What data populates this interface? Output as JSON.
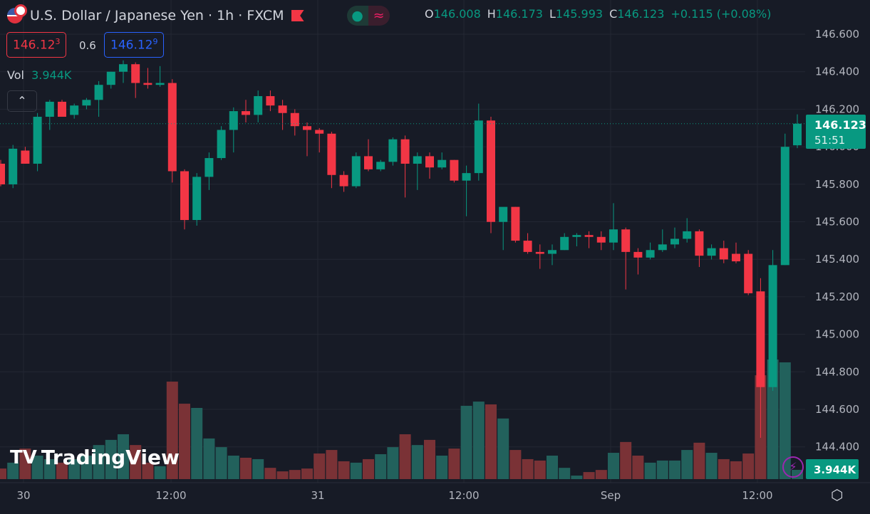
{
  "header": {
    "title": "U.S. Dollar / Japanese Yen · 1h · FXCM",
    "open_label": "O",
    "open": "146.008",
    "high_label": "H",
    "high": "146.173",
    "low_label": "L",
    "low": "145.993",
    "close_label": "C",
    "close": "146.123",
    "change": "+0.115 (+0.08%)"
  },
  "quote": {
    "bid": "146.12",
    "bid_sup": "3",
    "spread": "0.6",
    "ask": "146.12",
    "ask_sup": "9"
  },
  "volume_legend": {
    "label": "Vol",
    "value": "3.944K"
  },
  "price_axis": [
    "146.600",
    "146.400",
    "146.200",
    "146.000",
    "145.800",
    "145.600",
    "145.400",
    "145.200",
    "145.000",
    "144.800",
    "144.600",
    "144.400"
  ],
  "last_price": {
    "price": "146.123",
    "countdown": "51:51"
  },
  "volume_label": "3.944K",
  "time_axis": [
    "30",
    "12:00",
    "31",
    "12:00",
    "Sep",
    "12:00"
  ],
  "logo_text": "TradingView",
  "colors": {
    "up": "#089981",
    "down": "#f23645",
    "bg": "#171b26"
  },
  "chart_data": {
    "type": "candlestick",
    "symbol": "USDJPY",
    "interval": "1h",
    "ohlc": [
      [
        145.91,
        145.93,
        145.79,
        145.8
      ],
      [
        145.8,
        146.01,
        145.78,
        145.99
      ],
      [
        145.98,
        146.0,
        145.91,
        145.91
      ],
      [
        145.91,
        146.18,
        145.87,
        146.16
      ],
      [
        146.16,
        146.25,
        146.09,
        146.24
      ],
      [
        146.24,
        146.25,
        146.16,
        146.16
      ],
      [
        146.17,
        146.23,
        146.15,
        146.22
      ],
      [
        146.22,
        146.26,
        146.2,
        146.25
      ],
      [
        146.25,
        146.35,
        146.16,
        146.33
      ],
      [
        146.33,
        146.4,
        146.31,
        146.4
      ],
      [
        146.4,
        146.46,
        146.34,
        146.44
      ],
      [
        146.44,
        146.45,
        146.26,
        146.34
      ],
      [
        146.34,
        146.42,
        146.31,
        146.33
      ],
      [
        146.33,
        146.43,
        146.32,
        146.34
      ],
      [
        146.34,
        146.36,
        145.81,
        145.87
      ],
      [
        145.87,
        145.88,
        145.56,
        145.61
      ],
      [
        145.61,
        145.86,
        145.58,
        145.84
      ],
      [
        145.84,
        145.97,
        145.77,
        145.94
      ],
      [
        145.94,
        146.11,
        145.93,
        146.09
      ],
      [
        146.09,
        146.21,
        145.97,
        146.19
      ],
      [
        146.19,
        146.25,
        146.13,
        146.17
      ],
      [
        146.17,
        146.3,
        146.13,
        146.27
      ],
      [
        146.27,
        146.3,
        146.19,
        146.22
      ],
      [
        146.22,
        146.25,
        146.09,
        146.18
      ],
      [
        146.18,
        146.2,
        146.06,
        146.11
      ],
      [
        146.11,
        146.13,
        145.95,
        146.09
      ],
      [
        146.09,
        146.1,
        145.97,
        146.07
      ],
      [
        146.07,
        146.08,
        145.78,
        145.85
      ],
      [
        145.85,
        145.87,
        145.76,
        145.79
      ],
      [
        145.79,
        145.97,
        145.78,
        145.95
      ],
      [
        145.95,
        146.04,
        145.87,
        145.88
      ],
      [
        145.88,
        145.93,
        145.87,
        145.92
      ],
      [
        145.92,
        146.05,
        145.9,
        146.04
      ],
      [
        146.04,
        146.06,
        145.73,
        145.91
      ],
      [
        145.91,
        145.97,
        145.77,
        145.95
      ],
      [
        145.95,
        145.97,
        145.83,
        145.89
      ],
      [
        145.89,
        145.97,
        145.88,
        145.93
      ],
      [
        145.93,
        145.93,
        145.81,
        145.82
      ],
      [
        145.82,
        145.9,
        145.63,
        145.86
      ],
      [
        145.86,
        146.23,
        145.82,
        146.14
      ],
      [
        146.14,
        146.16,
        145.54,
        145.6
      ],
      [
        145.6,
        145.66,
        145.45,
        145.68
      ],
      [
        145.68,
        145.68,
        145.49,
        145.5
      ],
      [
        145.5,
        145.54,
        145.43,
        145.44
      ],
      [
        145.44,
        145.48,
        145.35,
        145.43
      ],
      [
        145.43,
        145.48,
        145.37,
        145.45
      ],
      [
        145.45,
        145.54,
        145.45,
        145.52
      ],
      [
        145.52,
        145.54,
        145.47,
        145.53
      ],
      [
        145.53,
        145.55,
        145.46,
        145.52
      ],
      [
        145.52,
        145.55,
        145.45,
        145.49
      ],
      [
        145.49,
        145.7,
        145.45,
        145.56
      ],
      [
        145.56,
        145.57,
        145.24,
        145.44
      ],
      [
        145.44,
        145.46,
        145.32,
        145.41
      ],
      [
        145.41,
        145.49,
        145.4,
        145.45
      ],
      [
        145.45,
        145.56,
        145.44,
        145.48
      ],
      [
        145.48,
        145.57,
        145.46,
        145.51
      ],
      [
        145.51,
        145.62,
        145.49,
        145.55
      ],
      [
        145.55,
        145.56,
        145.36,
        145.42
      ],
      [
        145.42,
        145.48,
        145.4,
        145.46
      ],
      [
        145.46,
        145.5,
        145.38,
        145.4
      ],
      [
        145.43,
        145.49,
        145.38,
        145.39
      ],
      [
        145.43,
        145.45,
        145.21,
        145.22
      ],
      [
        145.23,
        145.3,
        144.45,
        144.72
      ],
      [
        144.72,
        145.45,
        144.7,
        145.37
      ],
      [
        145.37,
        146.07,
        145.37,
        146.0
      ],
      [
        146.008,
        146.173,
        145.993,
        146.123
      ]
    ],
    "volume_k": [
      4.5,
      7.0,
      13.0,
      10.0,
      8.5,
      7.0,
      8.5,
      10.0,
      14.5,
      16.7,
      19.1,
      14.5,
      7.0,
      5.5,
      41.5,
      32.1,
      30.3,
      17.3,
      13.6,
      10.0,
      9.1,
      8.5,
      4.8,
      3.3,
      3.9,
      4.5,
      10.9,
      12.4,
      7.6,
      7.0,
      8.5,
      10.6,
      13.6,
      19.1,
      14.5,
      16.7,
      10.0,
      13.0,
      31.2,
      33.0,
      31.8,
      25.8,
      12.4,
      8.5,
      7.9,
      10.0,
      4.8,
      1.5,
      3.0,
      3.9,
      11.2,
      15.8,
      10.0,
      7.0,
      7.9,
      7.9,
      12.4,
      15.5,
      11.2,
      8.5,
      7.6,
      10.9,
      44.2,
      50.9,
      49.7,
      3.944
    ],
    "ylim": [
      144.3,
      146.65
    ]
  }
}
